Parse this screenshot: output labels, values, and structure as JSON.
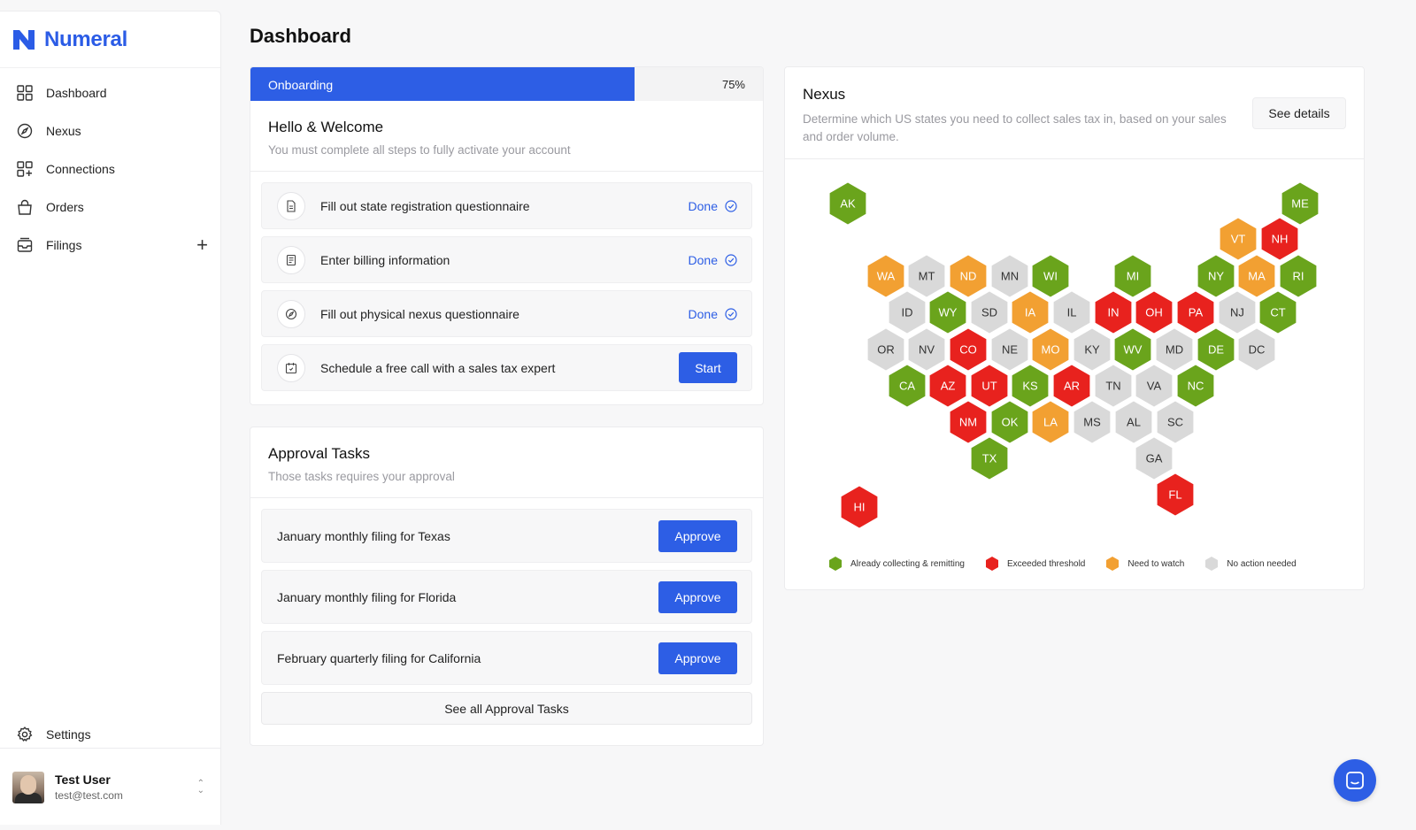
{
  "brand": {
    "name": "Numeral"
  },
  "sidebar": {
    "items": [
      {
        "label": "Dashboard",
        "icon": "dashboard-icon"
      },
      {
        "label": "Nexus",
        "icon": "compass-icon"
      },
      {
        "label": "Connections",
        "icon": "connections-icon"
      },
      {
        "label": "Orders",
        "icon": "bag-icon"
      },
      {
        "label": "Filings",
        "icon": "inbox-icon"
      }
    ],
    "settings_label": "Settings",
    "user": {
      "name": "Test User",
      "email": "test@test.com"
    }
  },
  "page": {
    "title": "Dashboard"
  },
  "onboarding": {
    "label": "Onboarding",
    "progress_text": "75%",
    "progress": 0.75,
    "title": "Hello & Welcome",
    "subtitle": "You must complete all steps to fully activate your account",
    "steps": [
      {
        "label": "Fill out state registration questionnaire",
        "status": "Done",
        "icon": "document-icon"
      },
      {
        "label": "Enter billing information",
        "status": "Done",
        "icon": "receipt-icon"
      },
      {
        "label": "Fill out physical nexus questionnaire",
        "status": "Done",
        "icon": "compass-icon"
      },
      {
        "label": "Schedule a free call with a sales tax expert",
        "action": "Start",
        "icon": "calendar-icon"
      }
    ]
  },
  "approval": {
    "title": "Approval Tasks",
    "subtitle": "Those tasks requires your approval",
    "tasks": [
      {
        "label": "January monthly filing for Texas",
        "action": "Approve"
      },
      {
        "label": "January monthly filing for Florida",
        "action": "Approve"
      },
      {
        "label": "February quarterly filing for California",
        "action": "Approve"
      }
    ],
    "see_all": "See all Approval Tasks"
  },
  "nexus": {
    "title": "Nexus",
    "subtitle": "Determine which US states you need to collect sales tax in, based on your sales and order volume.",
    "details_button": "See details",
    "colors": {
      "green": "#6aa41c",
      "red": "#e8221e",
      "orange": "#f2a032",
      "gray": "#d9d9d9"
    },
    "legend": [
      {
        "label": "Already collecting & remitting",
        "status": "green"
      },
      {
        "label": "Exceeded threshold",
        "status": "red"
      },
      {
        "label": "Need to watch",
        "status": "orange"
      },
      {
        "label": "No action needed",
        "status": "gray"
      }
    ],
    "states": [
      {
        "code": "AK",
        "status": "green"
      },
      {
        "code": "ME",
        "status": "green"
      },
      {
        "code": "VT",
        "status": "orange"
      },
      {
        "code": "NH",
        "status": "red"
      },
      {
        "code": "WA",
        "status": "orange"
      },
      {
        "code": "MT",
        "status": "gray"
      },
      {
        "code": "ND",
        "status": "orange"
      },
      {
        "code": "MN",
        "status": "gray"
      },
      {
        "code": "WI",
        "status": "green"
      },
      {
        "code": "MI",
        "status": "green"
      },
      {
        "code": "NY",
        "status": "green"
      },
      {
        "code": "MA",
        "status": "orange"
      },
      {
        "code": "RI",
        "status": "green"
      },
      {
        "code": "ID",
        "status": "gray"
      },
      {
        "code": "WY",
        "status": "green"
      },
      {
        "code": "SD",
        "status": "gray"
      },
      {
        "code": "IA",
        "status": "orange"
      },
      {
        "code": "IL",
        "status": "gray"
      },
      {
        "code": "IN",
        "status": "red"
      },
      {
        "code": "OH",
        "status": "red"
      },
      {
        "code": "PA",
        "status": "red"
      },
      {
        "code": "NJ",
        "status": "gray"
      },
      {
        "code": "CT",
        "status": "green"
      },
      {
        "code": "OR",
        "status": "gray"
      },
      {
        "code": "NV",
        "status": "gray"
      },
      {
        "code": "CO",
        "status": "red"
      },
      {
        "code": "NE",
        "status": "gray"
      },
      {
        "code": "MO",
        "status": "orange"
      },
      {
        "code": "KY",
        "status": "gray"
      },
      {
        "code": "WV",
        "status": "green"
      },
      {
        "code": "MD",
        "status": "gray"
      },
      {
        "code": "DE",
        "status": "green"
      },
      {
        "code": "DC",
        "status": "gray"
      },
      {
        "code": "CA",
        "status": "green"
      },
      {
        "code": "AZ",
        "status": "red"
      },
      {
        "code": "UT",
        "status": "red"
      },
      {
        "code": "KS",
        "status": "green"
      },
      {
        "code": "AR",
        "status": "red"
      },
      {
        "code": "TN",
        "status": "gray"
      },
      {
        "code": "VA",
        "status": "gray"
      },
      {
        "code": "NC",
        "status": "green"
      },
      {
        "code": "NM",
        "status": "red"
      },
      {
        "code": "OK",
        "status": "green"
      },
      {
        "code": "LA",
        "status": "orange"
      },
      {
        "code": "MS",
        "status": "gray"
      },
      {
        "code": "AL",
        "status": "gray"
      },
      {
        "code": "SC",
        "status": "gray"
      },
      {
        "code": "TX",
        "status": "green"
      },
      {
        "code": "GA",
        "status": "gray"
      },
      {
        "code": "HI",
        "status": "red"
      },
      {
        "code": "FL",
        "status": "red"
      }
    ]
  }
}
